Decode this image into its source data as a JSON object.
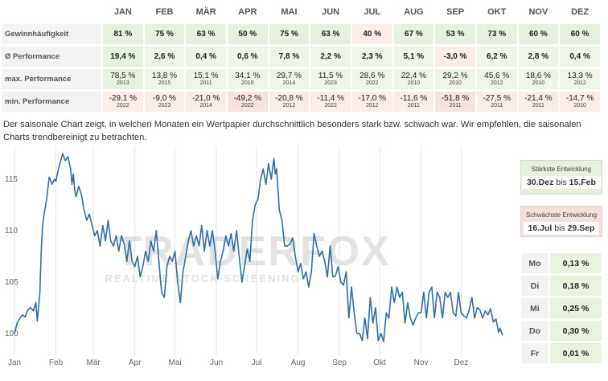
{
  "table": {
    "months": [
      "JAN",
      "FEB",
      "MÄR",
      "APR",
      "MAI",
      "JUN",
      "JUL",
      "AUG",
      "SEP",
      "OKT",
      "NOV",
      "DEZ"
    ],
    "rows": [
      {
        "label": "Gewinnhäufigkeit",
        "cells": [
          {
            "v": "81 %",
            "c": "g"
          },
          {
            "v": "75 %",
            "c": "g"
          },
          {
            "v": "63 %",
            "c": "g"
          },
          {
            "v": "50 %",
            "c": "g"
          },
          {
            "v": "75 %",
            "c": "g"
          },
          {
            "v": "63 %",
            "c": "g"
          },
          {
            "v": "40 %",
            "c": "rl"
          },
          {
            "v": "67 %",
            "c": "g"
          },
          {
            "v": "53 %",
            "c": "g"
          },
          {
            "v": "73 %",
            "c": "g"
          },
          {
            "v": "60 %",
            "c": "g"
          },
          {
            "v": "60 %",
            "c": "g"
          }
        ]
      },
      {
        "label": "Ø Performance",
        "cells": [
          {
            "v": "19,4 %",
            "c": "g"
          },
          {
            "v": "2,6 %",
            "c": "gl"
          },
          {
            "v": "0,4 %",
            "c": "gl"
          },
          {
            "v": "0,6 %",
            "c": "gl"
          },
          {
            "v": "7,8 %",
            "c": "gl"
          },
          {
            "v": "2,2 %",
            "c": "gl"
          },
          {
            "v": "2,3 %",
            "c": "gl"
          },
          {
            "v": "5,1 %",
            "c": "gl"
          },
          {
            "v": "-3,0 %",
            "c": "rl"
          },
          {
            "v": "6,2 %",
            "c": "gl"
          },
          {
            "v": "2,8 %",
            "c": "gl"
          },
          {
            "v": "0,4 %",
            "c": "gl"
          }
        ]
      },
      {
        "label": "max. Performance",
        "cells": [
          {
            "v": "78,5 %",
            "y": "2013",
            "c": "g"
          },
          {
            "v": "13,8 %",
            "y": "2015",
            "c": "gl"
          },
          {
            "v": "15,1 %",
            "y": "2011",
            "c": "gl"
          },
          {
            "v": "34,1 %",
            "y": "2010",
            "c": "gl"
          },
          {
            "v": "29,7 %",
            "y": "2014",
            "c": "gl"
          },
          {
            "v": "11,5 %",
            "y": "2023",
            "c": "gl"
          },
          {
            "v": "28,6 %",
            "y": "2022",
            "c": "gl"
          },
          {
            "v": "22,4 %",
            "y": "2010",
            "c": "gl"
          },
          {
            "v": "29,2 %",
            "y": "2010",
            "c": "gl"
          },
          {
            "v": "45,6 %",
            "y": "2012",
            "c": "gl"
          },
          {
            "v": "18,6 %",
            "y": "2010",
            "c": "gl"
          },
          {
            "v": "13,3 %",
            "y": "2012",
            "c": "gl"
          }
        ]
      },
      {
        "label": "min. Performance",
        "cells": [
          {
            "v": "-29,1 %",
            "y": "2022",
            "c": "rl"
          },
          {
            "v": "-9,0 %",
            "y": "2023",
            "c": "rl"
          },
          {
            "v": "-21,0 %",
            "y": "2014",
            "c": "rl"
          },
          {
            "v": "-49,2 %",
            "y": "2022",
            "c": "rd"
          },
          {
            "v": "-20,8 %",
            "y": "2012",
            "c": "rl"
          },
          {
            "v": "-11,4 %",
            "y": "2022",
            "c": "rl"
          },
          {
            "v": "-17,0 %",
            "y": "2012",
            "c": "rl"
          },
          {
            "v": "-11,6 %",
            "y": "2011",
            "c": "rl"
          },
          {
            "v": "-51,8 %",
            "y": "2011",
            "c": "rd"
          },
          {
            "v": "-27,5 %",
            "y": "2011",
            "c": "rl"
          },
          {
            "v": "-21,4 %",
            "y": "2011",
            "c": "rl"
          },
          {
            "v": "-14,7 %",
            "y": "2010",
            "c": "rl"
          }
        ]
      }
    ]
  },
  "description": "Der saisonale Chart zeigt, in welchen Monaten ein Wertpapier durchschnittlich besonders stark bzw. schwach war. Wir empfehlen, die saisonalen Charts trendbereinigt zu betrachten.",
  "watermark": {
    "brand": "TRADERFOX",
    "tagline": "REALTIME STOCK SCREENING"
  },
  "strongest": {
    "title": "Stärkste Entwicklung",
    "from": "30.Dez",
    "sep": "bis",
    "to": "15.Feb"
  },
  "weakest": {
    "title": "Schwächste Entwicklung",
    "from": "16.Jul",
    "sep": "bis",
    "to": "29.Sep"
  },
  "weekdays": [
    {
      "day": "Mo",
      "value": "0,13 %"
    },
    {
      "day": "Di",
      "value": "0,18 %"
    },
    {
      "day": "Mi",
      "value": "0,25 %"
    },
    {
      "day": "Do",
      "value": "0,30 %"
    },
    {
      "day": "Fr",
      "value": "0,01 %"
    }
  ],
  "colors": {
    "line": "#2f6ea6",
    "grid": "#e6e6e6",
    "axis_text": "#666666",
    "watermark_red": "#e9a0a0",
    "watermark_gray": "#cccccc"
  },
  "chart_data": {
    "type": "line",
    "x_unit": "day of year",
    "ylim": [
      98.5,
      118.2
    ],
    "y_ticks": [
      100,
      105,
      110,
      115
    ],
    "x_ticks": [
      {
        "label": "Jan",
        "x": 0
      },
      {
        "label": "Feb",
        "x": 31
      },
      {
        "label": "Mär",
        "x": 59
      },
      {
        "label": "Apr",
        "x": 90
      },
      {
        "label": "Mai",
        "x": 120
      },
      {
        "label": "Jun",
        "x": 151
      },
      {
        "label": "Jul",
        "x": 181
      },
      {
        "label": "Aug",
        "x": 212
      },
      {
        "label": "Sep",
        "x": 243
      },
      {
        "label": "Okt",
        "x": 273
      },
      {
        "label": "Nov",
        "x": 304
      },
      {
        "label": "Dez",
        "x": 334
      }
    ],
    "grid": "vertical",
    "series": [
      {
        "points": [
          [
            0,
            100
          ],
          [
            2,
            101
          ],
          [
            4,
            101.5
          ],
          [
            6,
            101.8
          ],
          [
            8,
            101.6
          ],
          [
            10,
            102.3
          ],
          [
            12,
            102.5
          ],
          [
            14,
            102.2
          ],
          [
            16,
            103
          ],
          [
            17,
            101.2
          ],
          [
            18,
            102.5
          ],
          [
            19,
            104
          ],
          [
            20,
            108
          ],
          [
            21,
            110.5
          ],
          [
            22,
            111.5
          ],
          [
            24,
            113
          ],
          [
            26,
            115.2
          ],
          [
            28,
            114.5
          ],
          [
            30,
            115
          ],
          [
            31,
            114.8
          ],
          [
            32,
            115.5
          ],
          [
            34,
            116.5
          ],
          [
            36,
            117.5
          ],
          [
            38,
            116.8
          ],
          [
            40,
            117.2
          ],
          [
            42,
            116
          ],
          [
            43,
            114.5
          ],
          [
            44,
            115.5
          ],
          [
            45,
            114
          ],
          [
            46,
            113.3
          ],
          [
            48,
            114.3
          ],
          [
            50,
            113.5
          ],
          [
            52,
            112
          ],
          [
            54,
            111
          ],
          [
            56,
            111.6
          ],
          [
            58,
            110.5
          ],
          [
            60,
            109.5
          ],
          [
            62,
            110
          ],
          [
            64,
            108.5
          ],
          [
            66,
            110.5
          ],
          [
            68,
            109
          ],
          [
            70,
            111
          ],
          [
            72,
            109
          ],
          [
            74,
            108.5
          ],
          [
            76,
            109.5
          ],
          [
            78,
            108
          ],
          [
            80,
            109.5
          ],
          [
            82,
            108.7
          ],
          [
            84,
            107
          ],
          [
            86,
            109
          ],
          [
            88,
            107
          ],
          [
            90,
            106.5
          ],
          [
            92,
            107.5
          ],
          [
            94,
            105.5
          ],
          [
            96,
            106.5
          ],
          [
            98,
            108
          ],
          [
            100,
            107
          ],
          [
            102,
            109
          ],
          [
            104,
            108
          ],
          [
            106,
            110
          ],
          [
            108,
            107
          ],
          [
            110,
            104
          ],
          [
            112,
            103.5
          ],
          [
            114,
            106.5
          ],
          [
            116,
            107.5
          ],
          [
            118,
            107
          ],
          [
            120,
            108
          ],
          [
            122,
            105
          ],
          [
            124,
            103
          ],
          [
            125,
            104.5
          ],
          [
            126,
            106
          ],
          [
            128,
            107.5
          ],
          [
            130,
            109
          ],
          [
            132,
            110
          ],
          [
            134,
            108.5
          ],
          [
            136,
            109.5
          ],
          [
            138,
            108.5
          ],
          [
            140,
            110.5
          ],
          [
            142,
            108
          ],
          [
            144,
            110
          ],
          [
            146,
            108.5
          ],
          [
            148,
            110
          ],
          [
            150,
            108
          ],
          [
            152,
            105.3
          ],
          [
            154,
            107
          ],
          [
            156,
            108
          ],
          [
            158,
            109.5
          ],
          [
            160,
            108.5
          ],
          [
            162,
            109.7
          ],
          [
            164,
            108
          ],
          [
            166,
            110
          ],
          [
            168,
            107.5
          ],
          [
            170,
            105
          ],
          [
            172,
            106.5
          ],
          [
            174,
            108.2
          ],
          [
            176,
            107
          ],
          [
            178,
            111
          ],
          [
            180,
            112.5
          ],
          [
            182,
            113
          ],
          [
            184,
            115
          ],
          [
            186,
            116
          ],
          [
            188,
            114.5
          ],
          [
            190,
            116.5
          ],
          [
            192,
            115
          ],
          [
            194,
            117
          ],
          [
            195,
            115.5
          ],
          [
            196,
            116
          ],
          [
            198,
            112
          ],
          [
            200,
            111
          ],
          [
            202,
            108.5
          ],
          [
            204,
            108.5
          ],
          [
            206,
            108.7
          ],
          [
            208,
            109.3
          ],
          [
            210,
            107.5
          ],
          [
            212,
            106
          ],
          [
            214,
            106.8
          ],
          [
            216,
            105.3
          ],
          [
            218,
            106
          ],
          [
            220,
            104.5
          ],
          [
            222,
            106
          ],
          [
            224,
            109.7
          ],
          [
            226,
            108.5
          ],
          [
            228,
            107.5
          ],
          [
            230,
            108
          ],
          [
            232,
            107
          ],
          [
            234,
            105.5
          ],
          [
            236,
            108.5
          ],
          [
            238,
            105.5
          ],
          [
            240,
            105.6
          ],
          [
            242,
            106.5
          ],
          [
            244,
            105
          ],
          [
            246,
            104.7
          ],
          [
            248,
            106
          ],
          [
            250,
            101.5
          ],
          [
            252,
            104.5
          ],
          [
            254,
            102
          ],
          [
            256,
            100
          ],
          [
            258,
            100
          ],
          [
            260,
            99.3
          ],
          [
            262,
            101.5
          ],
          [
            264,
            99.5
          ],
          [
            266,
            103.5
          ],
          [
            268,
            101
          ],
          [
            270,
            102.5
          ],
          [
            272,
            99.3
          ],
          [
            274,
            100
          ],
          [
            276,
            99.2
          ],
          [
            278,
            102
          ],
          [
            280,
            101.5
          ],
          [
            282,
            104.5
          ],
          [
            284,
            103
          ],
          [
            286,
            104.5
          ],
          [
            288,
            103.5
          ],
          [
            290,
            104
          ],
          [
            292,
            101
          ],
          [
            294,
            103
          ],
          [
            296,
            101.5
          ],
          [
            298,
            100.8
          ],
          [
            300,
            101.5
          ],
          [
            302,
            102
          ],
          [
            304,
            102
          ],
          [
            306,
            104
          ],
          [
            308,
            101.5
          ],
          [
            310,
            104
          ],
          [
            312,
            104.5
          ],
          [
            314,
            101.5
          ],
          [
            316,
            104
          ],
          [
            318,
            103.5
          ],
          [
            320,
            101.5
          ],
          [
            322,
            104
          ],
          [
            324,
            103.5
          ],
          [
            326,
            104
          ],
          [
            328,
            102
          ],
          [
            330,
            101.7
          ],
          [
            332,
            104
          ],
          [
            334,
            102
          ],
          [
            336,
            101.7
          ],
          [
            338,
            101.5
          ],
          [
            340,
            102.3
          ],
          [
            342,
            103.5
          ],
          [
            344,
            101.5
          ],
          [
            346,
            102.5
          ],
          [
            348,
            102.3
          ],
          [
            350,
            101.5
          ],
          [
            352,
            102.2
          ],
          [
            354,
            101.8
          ],
          [
            356,
            102.4
          ],
          [
            358,
            101.1
          ],
          [
            360,
            101.4
          ],
          [
            362,
            100.1
          ],
          [
            363,
            100.5
          ],
          [
            365,
            99.8
          ]
        ]
      }
    ]
  }
}
